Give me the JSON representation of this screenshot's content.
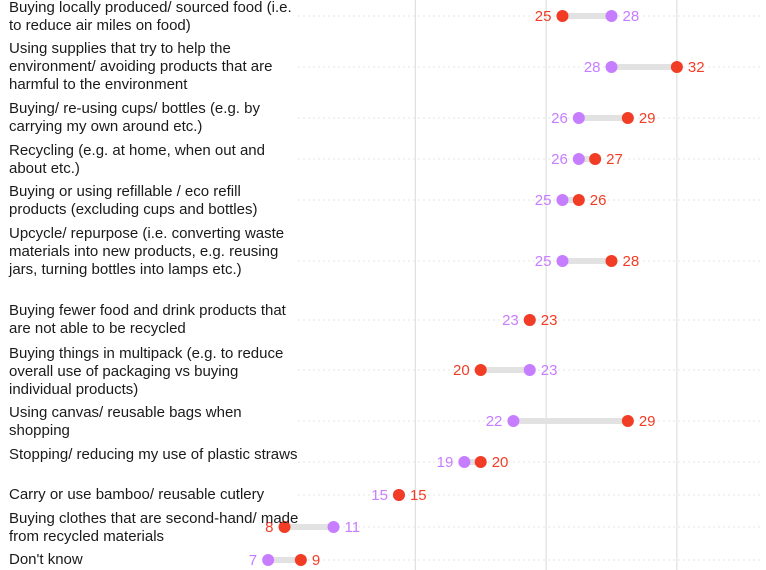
{
  "colors": {
    "series_a": "#c77dff",
    "series_b": "#f23d26",
    "connector": "#e2e2e2",
    "dotted_line": "#e6e6e6",
    "gridline": "#d9d9d9"
  },
  "chart_data": {
    "type": "dot-plot",
    "xlim": [
      0,
      35
    ],
    "grid": true,
    "categories": [
      "Buying locally produced/ sourced food (i.e. to reduce air miles on food)",
      "Using supplies that try to help the environment/ avoiding products that are harmful to the environment",
      "Buying/ re-using cups/ bottles (e.g. by carrying my own around etc.)",
      "Recycling (e.g. at home, when out and about etc.)",
      "Buying or using refillable / eco refill products (excluding cups and bottles)",
      "Upcycle/ repurpose (i.e. converting waste materials into new products, e.g. reusing jars, turning bottles into lamps etc.)",
      "Buying fewer food and drink products that are not able to be recycled",
      "Buying things in multipack (e.g. to reduce overall use of packaging vs buying individual products)",
      "Using canvas/ reusable bags when shopping",
      "Stopping/ reducing my use of plastic straws",
      "Carry or use bamboo/ reusable cutlery",
      "Buying clothes that are second-hand/ made from recycled materials",
      "Don't know"
    ],
    "series": [
      {
        "color": "#c77dff",
        "values": [
          28,
          28,
          26,
          26,
          25,
          25,
          23,
          23,
          22,
          19,
          15,
          11,
          7
        ]
      },
      {
        "color": "#f23d26",
        "values": [
          25,
          32,
          29,
          27,
          26,
          28,
          23,
          20,
          29,
          20,
          15,
          8,
          9
        ]
      }
    ]
  }
}
